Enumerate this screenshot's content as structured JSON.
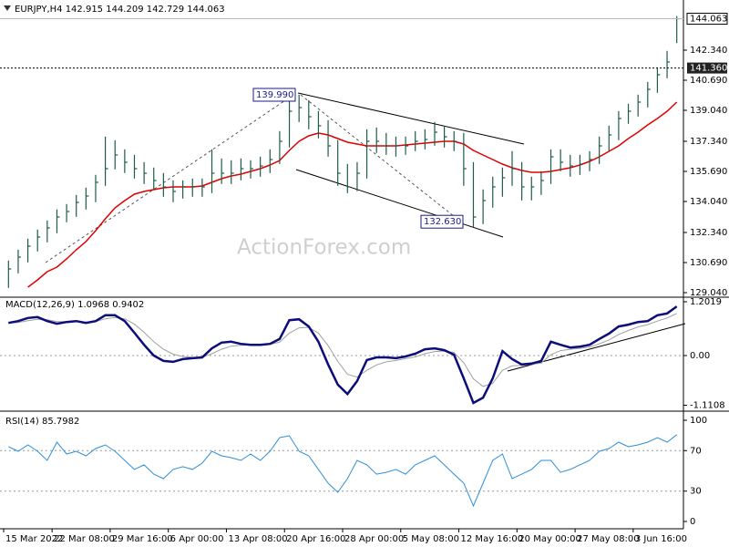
{
  "chart_data": [
    {
      "type": "ohlc",
      "title": "EURJPY,H4  142.915 144.209 142.729 144.063",
      "watermark": "ActionForex.com",
      "color": "#1e5c4a",
      "categories": [
        "15 Mar 2022",
        null,
        null,
        null,
        null,
        "22 Mar 08:00",
        null,
        null,
        null,
        null,
        null,
        "29 Mar 16:00",
        null,
        null,
        null,
        null,
        null,
        "6 Apr 00:00",
        null,
        null,
        null,
        null,
        null,
        "13 Apr 08:00",
        null,
        null,
        null,
        null,
        null,
        "20 Apr 16:00",
        null,
        null,
        null,
        null,
        null,
        "28 Apr 00:00",
        null,
        null,
        null,
        null,
        null,
        "5 May 08:00",
        null,
        null,
        null,
        null,
        null,
        "12 May 16:00",
        null,
        null,
        null,
        null,
        null,
        "20 May 00:00",
        null,
        null,
        null,
        null,
        null,
        "27 May 08:00",
        null,
        null,
        null,
        null,
        null,
        "3 Jun 16:00",
        null,
        null,
        null,
        null
      ],
      "high": [
        130.8,
        131.4,
        132.0,
        132.5,
        133.0,
        133.6,
        133.9,
        134.4,
        134.8,
        135.5,
        137.6,
        137.4,
        136.9,
        136.6,
        136.2,
        135.9,
        135.6,
        135.2,
        135.2,
        135.3,
        135.3,
        136.9,
        136.4,
        136.3,
        136.4,
        136.3,
        136.5,
        136.9,
        137.9,
        139.99,
        139.9,
        139.6,
        139.0,
        138.5,
        137.4,
        136.1,
        136.2,
        138.0,
        138.1,
        137.8,
        137.6,
        137.6,
        137.9,
        138.0,
        138.4,
        138.2,
        137.9,
        137.8,
        136.2,
        134.7,
        135.4,
        135.9,
        136.8,
        136.2,
        135.4,
        135.7,
        136.9,
        136.9,
        136.6,
        136.6,
        136.8,
        137.6,
        138.2,
        139.0,
        139.4,
        139.9,
        140.6,
        141.4,
        142.3,
        144.209
      ],
      "low": [
        129.3,
        130.1,
        130.7,
        131.3,
        131.8,
        132.3,
        132.9,
        133.2,
        133.6,
        134.0,
        134.9,
        135.8,
        135.6,
        135.3,
        135.0,
        134.7,
        134.3,
        134.0,
        134.2,
        134.3,
        134.3,
        134.5,
        135.0,
        135.0,
        135.2,
        135.3,
        135.4,
        135.6,
        136.1,
        137.0,
        138.4,
        138.0,
        137.5,
        136.5,
        134.9,
        134.5,
        134.6,
        135.3,
        136.7,
        136.6,
        136.5,
        136.6,
        136.8,
        136.9,
        137.1,
        137.0,
        136.8,
        134.9,
        132.63,
        132.8,
        133.7,
        134.3,
        134.9,
        134.1,
        134.1,
        134.4,
        135.0,
        135.7,
        135.4,
        135.5,
        135.7,
        136.1,
        136.8,
        137.4,
        138.3,
        138.7,
        139.2,
        140.0,
        140.8,
        142.729
      ],
      "close": [
        130.34,
        130.99,
        131.59,
        132.09,
        132.59,
        133.19,
        133.49,
        133.99,
        134.34,
        135.09,
        135.84,
        136.59,
        136.19,
        135.84,
        135.59,
        135.19,
        134.84,
        134.59,
        134.84,
        134.84,
        134.84,
        135.59,
        135.59,
        135.59,
        135.84,
        135.84,
        135.99,
        136.34,
        137.34,
        138.99,
        139.19,
        138.69,
        138.19,
        137.09,
        135.59,
        134.84,
        135.59,
        137.34,
        137.34,
        137.09,
        137.09,
        137.09,
        137.34,
        137.44,
        137.84,
        137.59,
        137.34,
        135.84,
        133.19,
        134.09,
        134.84,
        135.34,
        135.84,
        134.84,
        134.84,
        135.19,
        136.49,
        136.19,
        135.99,
        136.09,
        136.34,
        137.09,
        137.69,
        138.59,
        138.99,
        139.49,
        140.19,
        140.99,
        141.69,
        144.063
      ],
      "overlays": [
        {
          "color": "#e00000",
          "values": [
            null,
            null,
            129.34,
            129.74,
            130.19,
            130.44,
            130.89,
            131.39,
            131.84,
            132.44,
            133.09,
            133.69,
            134.09,
            134.44,
            134.59,
            134.69,
            134.79,
            134.84,
            134.84,
            134.84,
            134.89,
            135.09,
            135.29,
            135.44,
            135.54,
            135.69,
            135.84,
            136.04,
            136.29,
            136.84,
            137.34,
            137.64,
            137.79,
            137.69,
            137.49,
            137.29,
            137.19,
            137.09,
            137.09,
            137.09,
            137.09,
            137.14,
            137.19,
            137.24,
            137.29,
            137.34,
            137.34,
            137.19,
            136.84,
            136.59,
            136.34,
            136.09,
            135.89,
            135.74,
            135.64,
            135.64,
            135.69,
            135.79,
            135.89,
            136.04,
            136.24,
            136.49,
            136.79,
            137.09,
            137.49,
            137.84,
            138.24,
            138.59,
            138.99,
            139.49
          ]
        }
      ],
      "ylim": [
        128.84,
        145.09
      ],
      "yticks": [
        {
          "value": 142.34,
          "label": "142.340"
        },
        {
          "value": 140.69,
          "label": "140.690"
        },
        {
          "value": 139.04,
          "label": "139.040"
        },
        {
          "value": 137.34,
          "label": "137.340"
        },
        {
          "value": 135.69,
          "label": "135.690"
        },
        {
          "value": 134.04,
          "label": "134.040"
        },
        {
          "value": 132.34,
          "label": "132.340"
        },
        {
          "value": 130.69,
          "label": "130.690"
        },
        {
          "value": 129.04,
          "label": "129.040"
        }
      ],
      "current_price": 144.063,
      "level": {
        "value": 141.36,
        "label": "141.360"
      },
      "annotations": [
        {
          "value": 139.99,
          "label": "139.990"
        },
        {
          "value": 132.63,
          "label": "132.630"
        }
      ]
    },
    {
      "type": "line",
      "title": "MACD(12,26,9) 1.0968 0.9402",
      "series": [
        {
          "color": "#0c0c7a",
          "values": [
            0.73,
            0.77,
            0.84,
            0.86,
            0.77,
            0.71,
            0.75,
            0.77,
            0.73,
            0.77,
            0.9,
            0.9,
            0.77,
            0.51,
            0.24,
            0.0,
            -0.12,
            -0.14,
            -0.08,
            -0.06,
            -0.04,
            0.16,
            0.29,
            0.31,
            0.26,
            0.24,
            0.24,
            0.26,
            0.37,
            0.79,
            0.81,
            0.65,
            0.31,
            -0.2,
            -0.65,
            -0.86,
            -0.57,
            -0.1,
            -0.04,
            -0.04,
            -0.06,
            -0.02,
            0.04,
            0.14,
            0.16,
            0.12,
            0.02,
            -0.51,
            -1.06,
            -0.94,
            -0.51,
            0.1,
            -0.08,
            -0.2,
            -0.18,
            -0.12,
            0.31,
            0.24,
            0.18,
            0.2,
            0.24,
            0.37,
            0.49,
            0.65,
            0.69,
            0.75,
            0.77,
            0.9,
            0.94,
            1.0968
          ]
        },
        {
          "color": "#a0a0a0",
          "values": [
            0.73,
            0.74,
            0.78,
            0.81,
            0.8,
            0.76,
            0.76,
            0.76,
            0.75,
            0.76,
            0.82,
            0.85,
            0.82,
            0.7,
            0.52,
            0.31,
            0.14,
            0.03,
            -0.02,
            -0.04,
            -0.04,
            0.04,
            0.14,
            0.21,
            0.23,
            0.24,
            0.24,
            0.25,
            0.3,
            0.5,
            0.62,
            0.63,
            0.5,
            0.22,
            -0.13,
            -0.42,
            -0.48,
            -0.33,
            -0.21,
            -0.14,
            -0.11,
            -0.07,
            -0.03,
            0.04,
            0.09,
            0.1,
            0.07,
            -0.16,
            -0.52,
            -0.69,
            -0.62,
            -0.33,
            -0.23,
            -0.22,
            -0.2,
            -0.17,
            0.02,
            0.11,
            0.14,
            0.16,
            0.19,
            0.26,
            0.35,
            0.47,
            0.56,
            0.64,
            0.69,
            0.77,
            0.84,
            0.9402
          ]
        }
      ],
      "ylim": [
        -1.222,
        1.283
      ],
      "yticks": [
        1.2019,
        {
          "value": 0,
          "label": "0.00"
        },
        -1.1108
      ],
      "levels": [
        0
      ]
    },
    {
      "type": "line",
      "title": "RSI(14) 85.7982",
      "series": [
        {
          "color": "#2f8fd8",
          "values": [
            73.9,
            69.4,
            75.7,
            69.4,
            60.4,
            78.4,
            66.7,
            69.4,
            64.9,
            72.1,
            75.7,
            69.4,
            60.4,
            51.4,
            55.9,
            46.8,
            42.3,
            51.4,
            54.1,
            51.4,
            57.7,
            69.4,
            64.9,
            63.1,
            60.4,
            66.7,
            60.4,
            69.4,
            82.9,
            84.7,
            69.4,
            64.9,
            51.4,
            37.8,
            28.8,
            42.3,
            60.4,
            55.9,
            46.8,
            48.6,
            51.4,
            46.8,
            55.9,
            60.4,
            64.9,
            55.9,
            46.8,
            37.8,
            15.3,
            37.8,
            60.4,
            66.7,
            42.3,
            46.8,
            51.4,
            60.4,
            60.4,
            48.6,
            51.4,
            55.9,
            60.4,
            69.4,
            72.1,
            78.4,
            73.9,
            75.7,
            78.4,
            82.9,
            78.4,
            85.7982
          ]
        }
      ],
      "ylim": [
        -7.2,
        108.1
      ],
      "yticks": [
        100,
        70,
        30,
        0
      ],
      "levels": [
        70,
        30
      ]
    }
  ]
}
